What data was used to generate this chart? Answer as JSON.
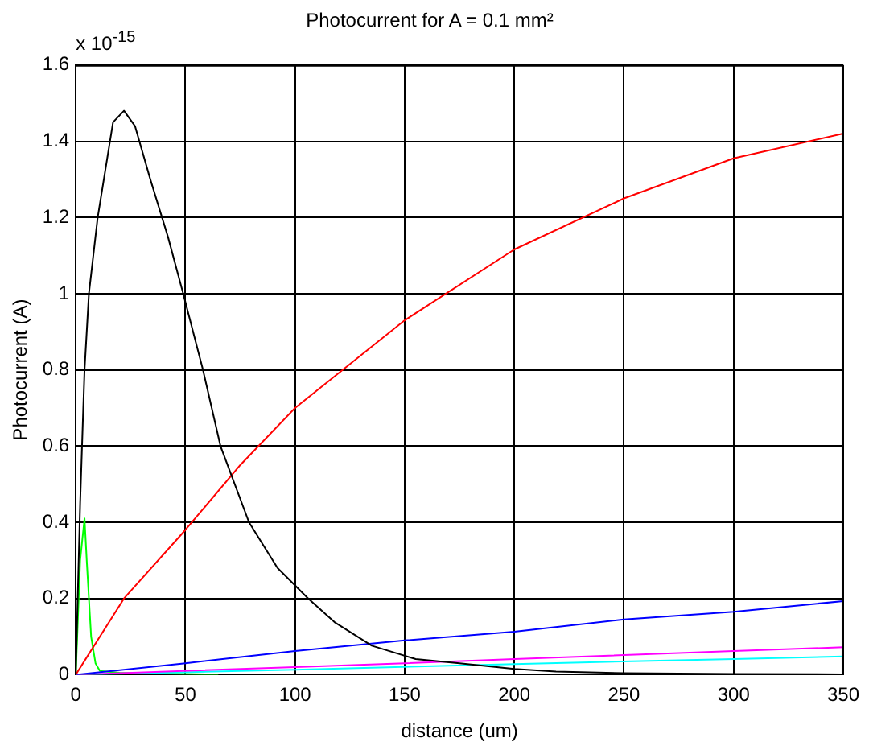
{
  "chart_data": {
    "type": "line",
    "title": "Photocurrent for A = 0.1 mm²",
    "xlabel": "distance (um)",
    "ylabel": "Photocurrent (A)",
    "annotations": [
      "x 10$^{-15}$"
    ],
    "xlim": [
      0,
      350
    ],
    "ylim": [
      0,
      1.6
    ],
    "xticks": [
      0,
      50,
      100,
      150,
      200,
      250,
      300,
      350
    ],
    "yticks": [
      0,
      0.2,
      0.4,
      0.6,
      0.8,
      1,
      1.2,
      1.4,
      1.6
    ],
    "grid": true,
    "legend": false,
    "marker": "none",
    "line_style": "solid",
    "series": [
      {
        "color": "#000000",
        "x": [
          0,
          2,
          4,
          6,
          10,
          17,
          22,
          27,
          34,
          42,
          49,
          58,
          66,
          79,
          92,
          106,
          118,
          135,
          155,
          175,
          200,
          219,
          250,
          300,
          350
        ],
        "values": [
          0,
          0.45,
          0.8,
          1.0,
          1.2,
          1.45,
          1.48,
          1.44,
          1.3,
          1.15,
          1.0,
          0.8,
          0.6,
          0.4,
          0.28,
          0.2,
          0.138,
          0.076,
          0.041,
          0.03,
          0.015,
          0.008,
          0.004,
          0.002,
          0.001
        ]
      },
      {
        "color": "#ff0000",
        "x": [
          0,
          22,
          50,
          75,
          100,
          150,
          200,
          250,
          300,
          350
        ],
        "values": [
          0,
          0.2,
          0.38,
          0.55,
          0.7,
          0.93,
          1.116,
          1.25,
          1.355,
          1.42
        ]
      },
      {
        "color": "#0000ff",
        "x": [
          0,
          50,
          100,
          150,
          200,
          250,
          300,
          350
        ],
        "values": [
          0,
          0.03,
          0.062,
          0.09,
          0.113,
          0.145,
          0.165,
          0.193
        ]
      },
      {
        "color": "#ff00ff",
        "x": [
          0,
          100,
          150,
          200,
          300,
          350
        ],
        "values": [
          0,
          0.02,
          0.03,
          0.041,
          0.062,
          0.072
        ]
      },
      {
        "color": "#00ffff",
        "x": [
          0,
          100,
          200,
          300,
          350
        ],
        "values": [
          0,
          0.013,
          0.028,
          0.041,
          0.048
        ]
      },
      {
        "color": "#00ff00",
        "x": [
          0,
          2,
          4,
          5,
          7,
          9,
          11,
          20,
          40,
          65
        ],
        "values": [
          0,
          0.3,
          0.41,
          0.3,
          0.1,
          0.03,
          0.01,
          0.005,
          0.003,
          0
        ]
      }
    ]
  }
}
